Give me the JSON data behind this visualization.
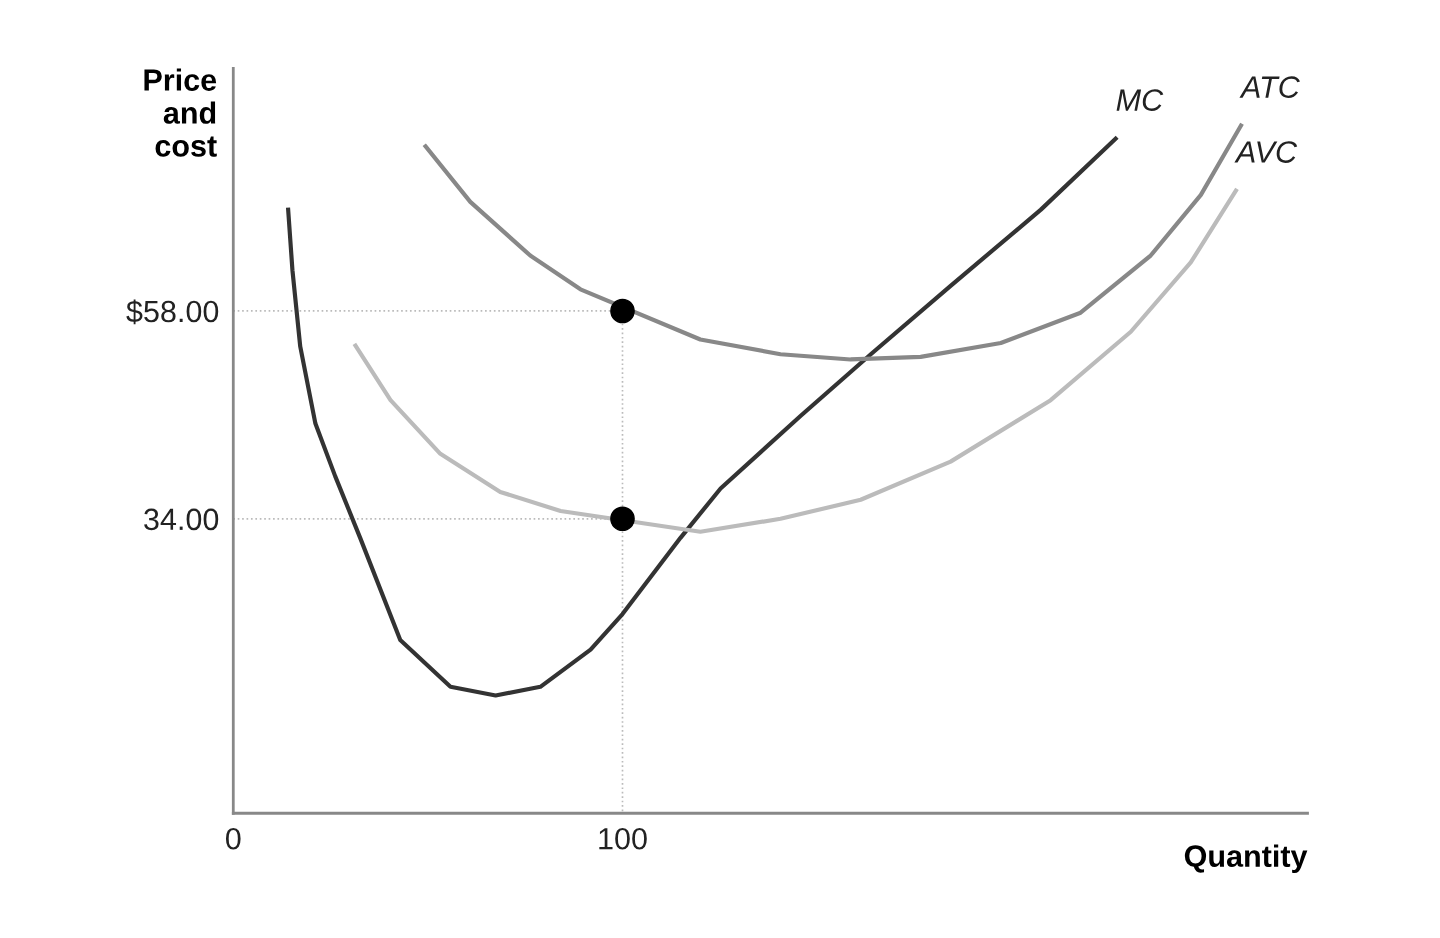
{
  "chart_data": {
    "type": "line",
    "xlabel": "Quantity",
    "ylabel": "Price\nand\ncost",
    "xlim": [
      0,
      276
    ],
    "ylim": [
      0,
      86
    ],
    "xticks": [
      0,
      100
    ],
    "yticks": [
      {
        "value": 34,
        "label": "34.00"
      },
      {
        "value": 58,
        "label": "$58.00"
      }
    ],
    "grid": false,
    "legend": false,
    "series": [
      {
        "type": "line",
        "line_style": "dotted",
        "color": "#bbbbbb",
        "x": [
          0,
          100,
          100
        ],
        "values": [
          58,
          58,
          0
        ]
      },
      {
        "type": "line",
        "line_style": "dotted",
        "color": "#bbbbbb",
        "x": [
          0,
          100
        ],
        "values": [
          34,
          34
        ]
      },
      {
        "name": "MC",
        "color": "#333333",
        "x": [
          14.1,
          15.2,
          17.2,
          21.1,
          26.2,
          32.6,
          42.9,
          55.8,
          67.4,
          78.9,
          91.8,
          100,
          114.9,
          125.2,
          145.8,
          163.8,
          184.3,
          207.5,
          226.7
        ],
        "values": [
          69.7,
          62.7,
          53.9,
          45.0,
          38.9,
          31.8,
          20.0,
          14.6,
          13.6,
          14.6,
          18.9,
          23.0,
          31.8,
          37.5,
          45.9,
          53.0,
          60.9,
          69.7,
          77.9
        ]
      },
      {
        "name": "ATC",
        "color": "#888888",
        "x": [
          49.4,
          60.9,
          76.3,
          89.2,
          120,
          140.6,
          158.6,
          176.6,
          197.2,
          217.7,
          235.7,
          248.6,
          258.9
        ],
        "values": [
          77.0,
          70.6,
          64.4,
          60.5,
          54.7,
          53.0,
          52.4,
          52.7,
          54.3,
          57.8,
          64.4,
          71.4,
          79.4
        ]
      },
      {
        "name": "AVC",
        "color": "#bbbbbb",
        "x": [
          31.4,
          40.4,
          53.2,
          68.6,
          84.1,
          120,
          140.6,
          161.2,
          184.3,
          210,
          230.6,
          246,
          257.6
        ],
        "values": [
          54.0,
          47.7,
          41.5,
          37.1,
          34.9,
          32.5,
          34,
          36.2,
          40.6,
          47.7,
          55.6,
          63.6,
          71.9
        ]
      },
      {
        "type": "scatter",
        "marker": "circle",
        "color": "#000000",
        "x": [
          100,
          100
        ],
        "values": [
          58,
          34
        ]
      }
    ]
  }
}
